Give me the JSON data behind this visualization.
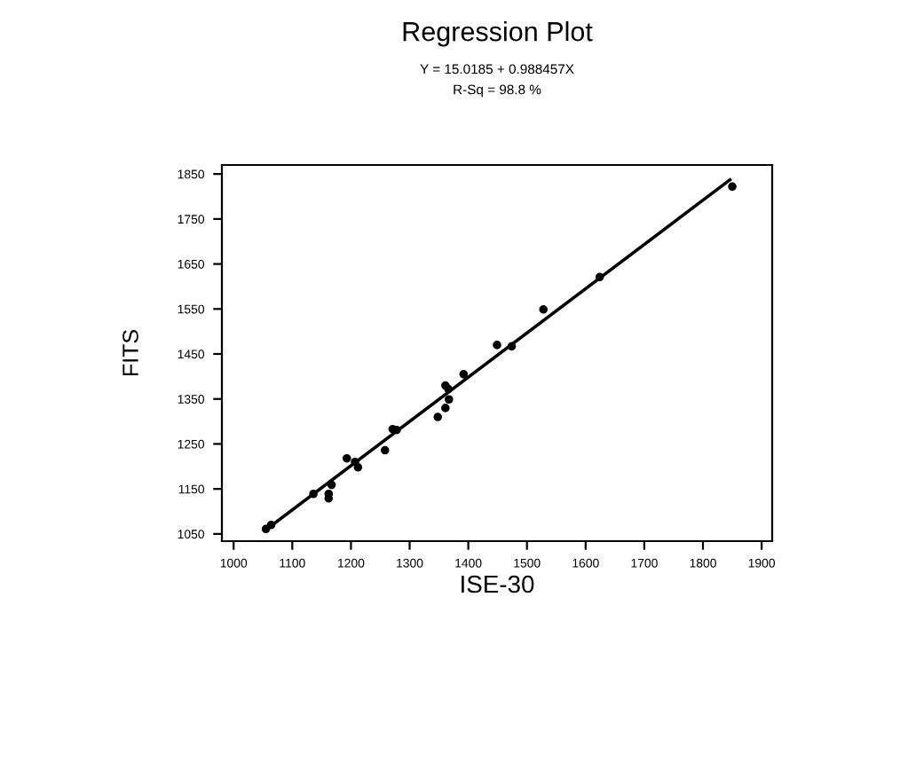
{
  "chart_data": {
    "type": "scatter",
    "title": "Regression Plot",
    "subtitle": "Y = 15.0185 + 0.988457X\nR-Sq = 98.8 %",
    "xlabel": "ISE-30",
    "ylabel": "FITS",
    "xlim": [
      980,
      1918
    ],
    "ylim": [
      1034,
      1870
    ],
    "xticks": [
      1000,
      1100,
      1200,
      1300,
      1400,
      1500,
      1600,
      1700,
      1800,
      1900
    ],
    "yticks": [
      1050,
      1150,
      1250,
      1350,
      1450,
      1550,
      1650,
      1750,
      1850
    ],
    "grid": false,
    "series": [
      {
        "marker": "circle",
        "color": "#000000",
        "x": [
          1055,
          1064,
          1136,
          1162,
          1162,
          1167,
          1193,
          1207,
          1212,
          1258,
          1271,
          1278,
          1348,
          1361,
          1361,
          1367,
          1366,
          1392,
          1449,
          1474,
          1528,
          1624,
          1850
        ],
        "values": [
          1061,
          1070,
          1139,
          1129,
          1139,
          1159,
          1218,
          1210,
          1198,
          1236,
          1283,
          1281,
          1310,
          1330,
          1380,
          1349,
          1372,
          1405,
          1470,
          1467,
          1549,
          1621,
          1822
        ]
      },
      {
        "type": "line",
        "marker": "none",
        "color": "#000000",
        "x": [
          1060,
          1846
        ],
        "values": [
          1064,
          1837
        ]
      }
    ]
  }
}
